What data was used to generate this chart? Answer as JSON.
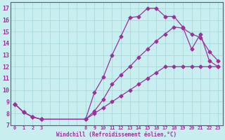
{
  "xlabel": "Windchill (Refroidissement éolien,°C)",
  "bg_color": "#c8eef0",
  "grid_color": "#a8d8dc",
  "line_color": "#993399",
  "line1_x": [
    0,
    1,
    2,
    3,
    8,
    9,
    10,
    11,
    12,
    13,
    14,
    15,
    16,
    17,
    18,
    19,
    20,
    21,
    22,
    23
  ],
  "line1_y": [
    8.8,
    8.1,
    7.7,
    7.5,
    7.5,
    9.8,
    11.1,
    13.0,
    14.6,
    16.2,
    16.3,
    17.0,
    17.0,
    16.3,
    16.3,
    15.4,
    13.5,
    14.8,
    12.5,
    12.0
  ],
  "line2_x": [
    0,
    1,
    2,
    3,
    8,
    9,
    10,
    11,
    12,
    13,
    14,
    15,
    16,
    17,
    18,
    19,
    20,
    21,
    22,
    23
  ],
  "line2_y": [
    8.8,
    8.1,
    7.7,
    7.5,
    7.5,
    8.2,
    9.2,
    10.5,
    11.3,
    12.0,
    12.8,
    13.5,
    14.2,
    14.8,
    15.4,
    15.3,
    14.8,
    14.5,
    13.3,
    12.5
  ],
  "line3_x": [
    0,
    1,
    2,
    3,
    8,
    9,
    10,
    11,
    12,
    13,
    14,
    15,
    16,
    17,
    18,
    19,
    20,
    21,
    22,
    23
  ],
  "line3_y": [
    8.8,
    8.1,
    7.7,
    7.5,
    7.5,
    8.0,
    8.5,
    9.0,
    9.5,
    10.0,
    10.5,
    11.0,
    11.5,
    12.0,
    12.0,
    12.0,
    12.0,
    12.0,
    12.0,
    12.0
  ],
  "xtick_positions": [
    0,
    1,
    2,
    3,
    8,
    9,
    10,
    11,
    12,
    13,
    14,
    15,
    16,
    17,
    18,
    19,
    20,
    21,
    22,
    23
  ],
  "xtick_labels": [
    "0",
    "1",
    "2",
    "3",
    "8",
    "9",
    "10",
    "11",
    "12",
    "13",
    "14",
    "15",
    "16",
    "17",
    "18",
    "19",
    "20",
    "21",
    "22",
    "23"
  ],
  "yticks": [
    7,
    8,
    9,
    10,
    11,
    12,
    13,
    14,
    15,
    16,
    17
  ],
  "xlim": [
    -0.5,
    23.5
  ],
  "ylim": [
    7,
    17.5
  ]
}
